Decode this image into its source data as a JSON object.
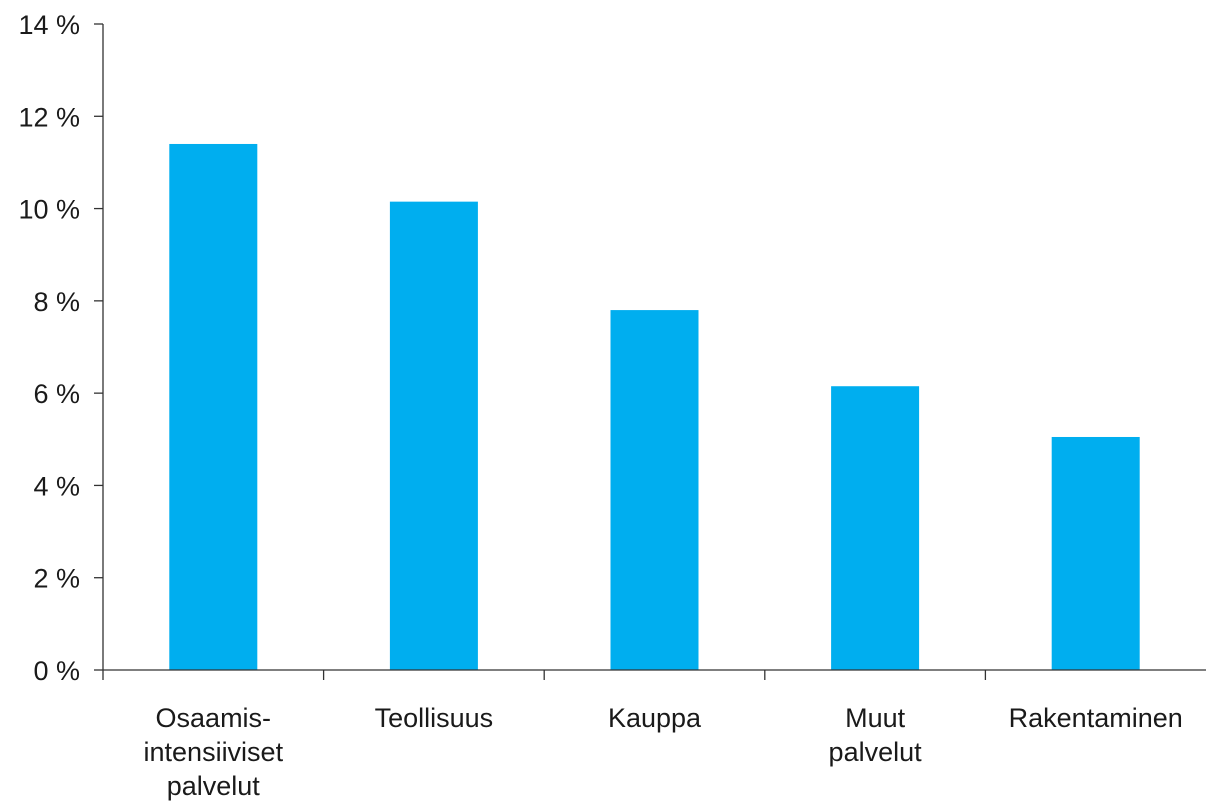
{
  "chart_data": {
    "type": "bar",
    "categories": [
      [
        "Osaamis-",
        "intensiiviset",
        "palvelut"
      ],
      [
        "Teollisuus"
      ],
      [
        "Kauppa"
      ],
      [
        "Muut",
        "palvelut"
      ],
      [
        "Rakentaminen"
      ]
    ],
    "values": [
      11.4,
      10.15,
      7.8,
      6.15,
      5.05
    ],
    "ylim": [
      0,
      14
    ],
    "yticks": [
      {
        "value": 0,
        "label": "0 %"
      },
      {
        "value": 2,
        "label": "2 %"
      },
      {
        "value": 4,
        "label": "4 %"
      },
      {
        "value": 6,
        "label": "6 %"
      },
      {
        "value": 8,
        "label": "8 %"
      },
      {
        "value": 10,
        "label": "10 %"
      },
      {
        "value": 12,
        "label": "12 %"
      },
      {
        "value": 14,
        "label": "14 %"
      }
    ],
    "title": "",
    "xlabel": "",
    "ylabel": "",
    "grid": false,
    "legend": "none",
    "bar_color": "#00AEEF"
  }
}
